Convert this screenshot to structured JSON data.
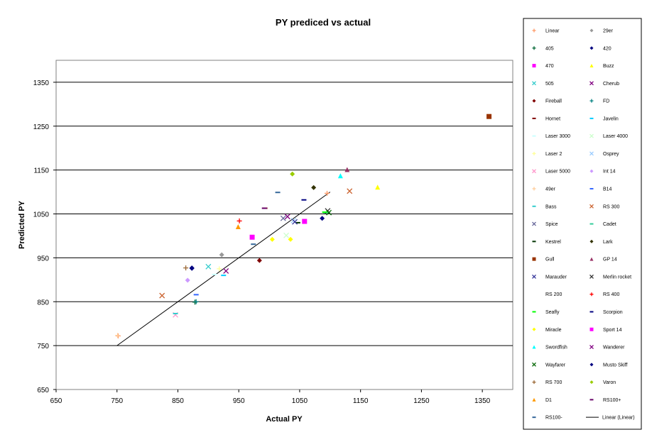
{
  "chart_data": {
    "type": "scatter",
    "title": "PY prediced vs actual",
    "xlabel": "Actual PY",
    "ylabel": "Predicted PY",
    "xlim": [
      650,
      1400
    ],
    "ylim": [
      650,
      1400
    ],
    "x_ticks": [
      650,
      750,
      850,
      950,
      1050,
      1150,
      1250,
      1350
    ],
    "y_ticks": [
      650,
      750,
      850,
      950,
      1050,
      1150,
      1250,
      1350
    ],
    "grid": "horizontal",
    "legend_position": "right",
    "trendline": {
      "name": "Linear (Linear)",
      "x": [
        750,
        1100
      ],
      "y": [
        750,
        1100
      ],
      "color": "#000000"
    },
    "series": [
      {
        "name": "Linear",
        "marker": "plus",
        "color": "#ff9966",
        "points": [
          [
            752,
            772
          ],
          [
            1095,
            1097
          ]
        ]
      },
      {
        "name": "29er",
        "marker": "diamond",
        "color": "#999999",
        "points": [
          [
            922,
            957
          ]
        ]
      },
      {
        "name": "405",
        "marker": "plus",
        "color": "#006633",
        "points": [
          [
            878,
            849
          ]
        ]
      },
      {
        "name": "420",
        "marker": "diamond",
        "color": "#000080",
        "points": [
          [
            873,
            926
          ],
          [
            1087,
            1040
          ]
        ]
      },
      {
        "name": "470",
        "marker": "square",
        "color": "#ff00ff",
        "points": [
          [
            972,
            997
          ]
        ]
      },
      {
        "name": "Buzz",
        "marker": "triangle",
        "color": "#ffff00",
        "points": [
          [
            1178,
            1111
          ]
        ]
      },
      {
        "name": "505",
        "marker": "x",
        "color": "#33cccc",
        "points": [
          [
            900,
            930
          ]
        ]
      },
      {
        "name": "Cherub",
        "marker": "x",
        "color": "#800080",
        "points": [
          [
            1030,
            1044
          ]
        ]
      },
      {
        "name": "Fireball",
        "marker": "diamond",
        "color": "#800000",
        "points": [
          [
            984,
            944
          ]
        ]
      },
      {
        "name": "FD",
        "marker": "plus",
        "color": "#008080",
        "points": [
          [
            880,
            850
          ]
        ]
      },
      {
        "name": "Hornet",
        "marker": "dash",
        "color": "#800000",
        "points": [
          [
            993,
            1063
          ]
        ]
      },
      {
        "name": "Javelin",
        "marker": "dash",
        "color": "#00ccff",
        "points": [
          [
            925,
            910
          ]
        ]
      },
      {
        "name": "Laser 3000",
        "marker": "dash",
        "color": "#ccffff",
        "points": [
          [
            910,
            912
          ]
        ]
      },
      {
        "name": "Laser 4000",
        "marker": "x",
        "color": "#ccffcc",
        "points": [
          [
            1028,
            1001
          ]
        ]
      },
      {
        "name": "Laser 2",
        "marker": "plus",
        "color": "#ffff99",
        "points": [
          [
            918,
            925
          ]
        ]
      },
      {
        "name": "Osprey",
        "marker": "x",
        "color": "#99ccff",
        "points": [
          [
            1040,
            1035
          ]
        ]
      },
      {
        "name": "Laser 5000",
        "marker": "x",
        "color": "#ff99cc",
        "points": [
          [
            846,
            820
          ]
        ]
      },
      {
        "name": "Int 14",
        "marker": "diamond",
        "color": "#cc99ff",
        "points": [
          [
            866,
            899
          ]
        ]
      },
      {
        "name": "49er",
        "marker": "plus",
        "color": "#ffcc99",
        "points": [
          [
            751,
            773
          ]
        ]
      },
      {
        "name": "B14",
        "marker": "dash",
        "color": "#3366ff",
        "points": [
          [
            880,
            866
          ]
        ]
      },
      {
        "name": "Bass",
        "marker": "dash",
        "color": "#33cccc",
        "points": [
          [
            846,
            823
          ]
        ]
      },
      {
        "name": "RS 300",
        "marker": "x",
        "color": "#cc6633",
        "points": [
          [
            824,
            864
          ],
          [
            1132,
            1102
          ]
        ]
      },
      {
        "name": "Spice",
        "marker": "x",
        "color": "#666699",
        "points": [
          [
            1023,
            1040
          ]
        ]
      },
      {
        "name": "Cadet",
        "marker": "dash",
        "color": "#33cc99",
        "points": [
          [
            1093,
            1053
          ]
        ]
      },
      {
        "name": "Kestrel",
        "marker": "dash",
        "color": "#003300",
        "points": [
          [
            1047,
            1030
          ]
        ]
      },
      {
        "name": "Lark",
        "marker": "diamond",
        "color": "#333300",
        "points": [
          [
            1073,
            1110
          ]
        ]
      },
      {
        "name": "Gull",
        "marker": "square",
        "color": "#993300",
        "points": [
          [
            1361,
            1272
          ]
        ]
      },
      {
        "name": "GP 14",
        "marker": "triangle",
        "color": "#993366",
        "points": [
          [
            1128,
            1151
          ]
        ]
      },
      {
        "name": "Marauder",
        "marker": "x",
        "color": "#333399",
        "points": [
          [
            1042,
            1032
          ]
        ]
      },
      {
        "name": "Merlin rocket",
        "marker": "x",
        "color": "#333333",
        "points": [
          [
            1096,
            1057
          ]
        ]
      },
      {
        "name": "RS 200",
        "marker": "none",
        "color": "#ffffff",
        "points": []
      },
      {
        "name": "RS 400",
        "marker": "plus",
        "color": "#ff0000",
        "points": [
          [
            951,
            1034
          ]
        ]
      },
      {
        "name": "Seafly",
        "marker": "dash",
        "color": "#00ff00",
        "points": [
          [
            1091,
            1054
          ]
        ]
      },
      {
        "name": "Scorpion",
        "marker": "dash",
        "color": "#000080",
        "points": [
          [
            1057,
            1082
          ]
        ]
      },
      {
        "name": "Miracle",
        "marker": "diamond",
        "color": "#ffff00",
        "points": [
          [
            1005,
            992
          ],
          [
            1035,
            992
          ]
        ]
      },
      {
        "name": "Sport 14",
        "marker": "square",
        "color": "#ff00ff",
        "points": [
          [
            1058,
            1033
          ]
        ]
      },
      {
        "name": "Swordfish",
        "marker": "triangle",
        "color": "#00ffff",
        "points": [
          [
            1117,
            1137
          ]
        ]
      },
      {
        "name": "Wanderer",
        "marker": "x",
        "color": "#800080",
        "points": [
          [
            929,
            920
          ]
        ]
      },
      {
        "name": "Wayfarer",
        "marker": "x",
        "color": "#006600",
        "points": [
          [
            1098,
            1053
          ]
        ]
      },
      {
        "name": "Musto Skiff",
        "marker": "diamond",
        "color": "#000080",
        "points": [
          [
            873,
            927
          ]
        ]
      },
      {
        "name": "RS 700",
        "marker": "plus",
        "color": "#996633",
        "points": [
          [
            863,
            927
          ]
        ]
      },
      {
        "name": "Varon",
        "marker": "diamond",
        "color": "#99cc00",
        "points": [
          [
            1038,
            1141
          ]
        ]
      },
      {
        "name": "D1",
        "marker": "triangle",
        "color": "#ff9900",
        "points": [
          [
            949,
            1021
          ]
        ]
      },
      {
        "name": "RS100+",
        "marker": "dash",
        "color": "#660066",
        "points": [
          [
            992,
            1063
          ]
        ]
      },
      {
        "name": "RS100-",
        "marker": "dash",
        "color": "#336699",
        "points": [
          [
            1014,
            1099
          ],
          [
            974,
            981
          ]
        ]
      }
    ]
  }
}
